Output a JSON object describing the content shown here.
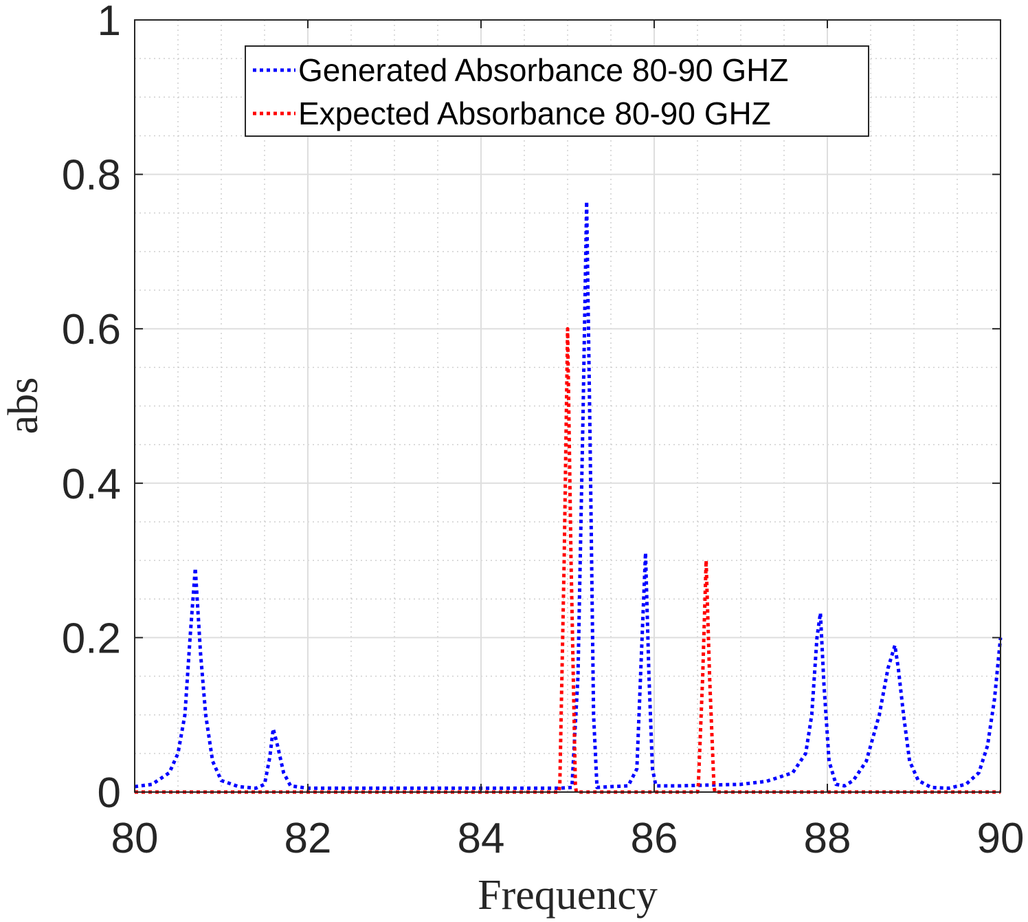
{
  "chart_data": {
    "type": "line",
    "title": "",
    "xlabel": "Frequency",
    "ylabel": "abs",
    "xlim": [
      80,
      90
    ],
    "ylim": [
      0,
      1
    ],
    "xticks": [
      "80",
      "82",
      "84",
      "86",
      "88",
      "90"
    ],
    "yticks": [
      "0",
      "0.2",
      "0.4",
      "0.6",
      "0.8",
      "1"
    ],
    "x_tick_values": [
      80,
      82,
      84,
      86,
      88,
      90
    ],
    "y_tick_values": [
      0,
      0.2,
      0.4,
      0.6,
      0.8,
      1
    ],
    "grid": true,
    "minor_grid": true,
    "legend_position": "top-center",
    "series": [
      {
        "name": "Generated Absorbance 80-90 GHZ",
        "color": "#0000ff",
        "line_style": "dotted",
        "x": [
          80.0,
          80.2,
          80.4,
          80.5,
          80.58,
          80.64,
          80.7,
          80.76,
          80.82,
          80.9,
          81.0,
          81.2,
          81.4,
          81.5,
          81.56,
          81.6,
          81.65,
          81.72,
          81.8,
          82.0,
          83.0,
          84.0,
          84.9,
          85.05,
          85.12,
          85.18,
          85.22,
          85.26,
          85.3,
          85.34,
          85.5,
          85.7,
          85.8,
          85.86,
          85.9,
          85.94,
          85.98,
          86.02,
          86.3,
          86.6,
          87.0,
          87.3,
          87.6,
          87.75,
          87.82,
          87.88,
          87.92,
          87.96,
          88.02,
          88.1,
          88.2,
          88.3,
          88.45,
          88.6,
          88.7,
          88.78,
          88.82,
          88.88,
          88.95,
          89.05,
          89.2,
          89.4,
          89.6,
          89.75,
          89.85,
          89.93,
          90.0
        ],
        "y": [
          0.007,
          0.01,
          0.025,
          0.05,
          0.1,
          0.2,
          0.29,
          0.18,
          0.1,
          0.04,
          0.015,
          0.007,
          0.005,
          0.01,
          0.045,
          0.082,
          0.06,
          0.025,
          0.008,
          0.005,
          0.005,
          0.005,
          0.005,
          0.006,
          0.15,
          0.5,
          0.765,
          0.45,
          0.1,
          0.006,
          0.007,
          0.008,
          0.03,
          0.2,
          0.31,
          0.15,
          0.03,
          0.008,
          0.008,
          0.009,
          0.01,
          0.014,
          0.025,
          0.05,
          0.1,
          0.2,
          0.232,
          0.14,
          0.04,
          0.01,
          0.008,
          0.015,
          0.04,
          0.1,
          0.16,
          0.19,
          0.16,
          0.1,
          0.04,
          0.015,
          0.006,
          0.005,
          0.01,
          0.025,
          0.06,
          0.12,
          0.2
        ]
      },
      {
        "name": "Expected Absorbance 80-90 GHZ",
        "color": "#ff0000",
        "line_style": "dotted",
        "x": [
          80.0,
          84.9,
          84.91,
          84.96,
          85.0,
          85.04,
          85.09,
          85.1,
          86.5,
          86.51,
          86.56,
          86.6,
          86.64,
          86.69,
          86.7,
          90.0
        ],
        "y": [
          0,
          0,
          0.01,
          0.3,
          0.6,
          0.3,
          0.01,
          0,
          0,
          0.01,
          0.15,
          0.3,
          0.15,
          0.01,
          0,
          0
        ]
      }
    ]
  }
}
